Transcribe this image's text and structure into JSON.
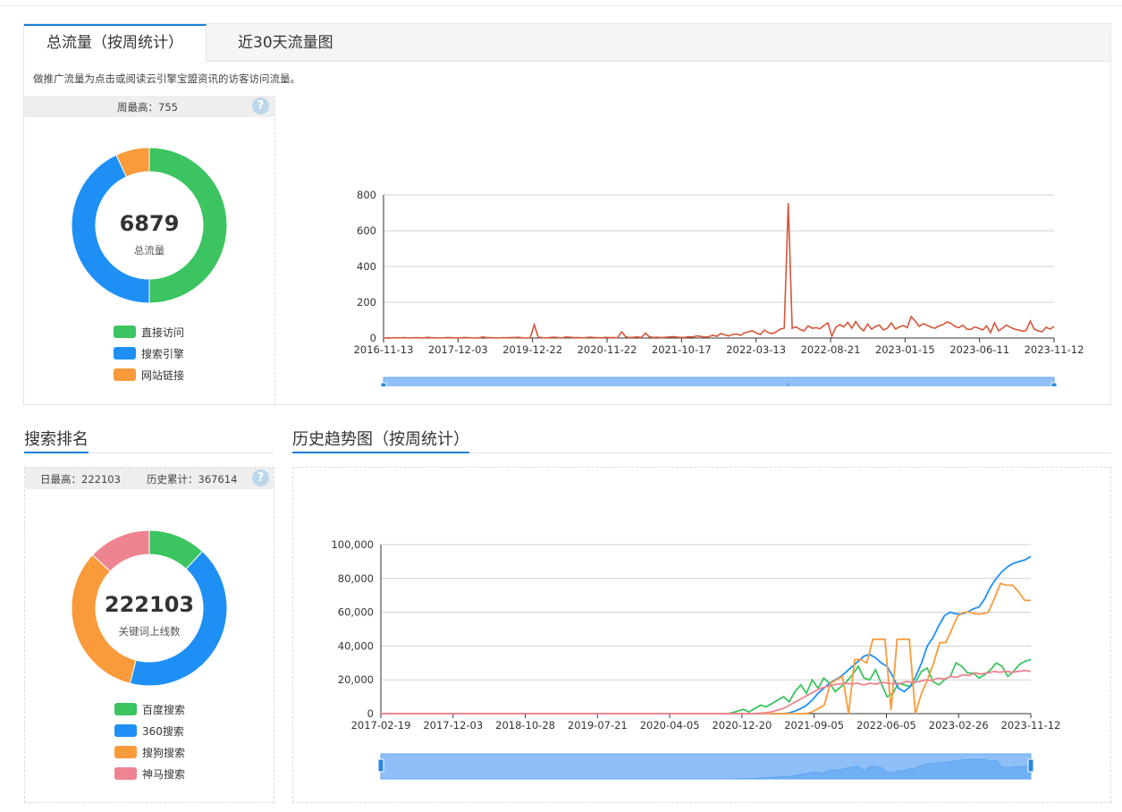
{
  "tabs": [
    {
      "label": "总流量（按周统计）",
      "active": true
    },
    {
      "label": "近30天流量图",
      "active": false
    }
  ],
  "note": "做推广流量为点击或阅读云引擎宝盟资讯的访客访问流量。",
  "traffic": {
    "stat_label": "周最高：755",
    "help": "?",
    "donut": {
      "total": "6879",
      "label": "总流量",
      "slices": [
        {
          "name": "直接访问",
          "fraction": 0.5,
          "color": "#3bc460"
        },
        {
          "name": "搜索引擎",
          "fraction": 0.43,
          "color": "#1e90f5"
        },
        {
          "name": "网站链接",
          "fraction": 0.07,
          "color": "#f99a3b"
        }
      ]
    },
    "legend": [
      {
        "label": "直接访问",
        "color": "#3bc460"
      },
      {
        "label": "搜索引擎",
        "color": "#1e90f5"
      },
      {
        "label": "网站链接",
        "color": "#f99a3b"
      }
    ]
  },
  "ranking": {
    "heading": "搜索排名",
    "stat_day": "日最高：222103",
    "stat_total": "历史累计：367614",
    "help": "?",
    "donut": {
      "total": "222103",
      "label": "关键词上线数",
      "slices": [
        {
          "name": "百度搜索",
          "fraction": 0.12,
          "color": "#3bc460"
        },
        {
          "name": "360搜索",
          "fraction": 0.42,
          "color": "#1e90f5"
        },
        {
          "name": "搜狗搜索",
          "fraction": 0.33,
          "color": "#f99a3b"
        },
        {
          "name": "神马搜索",
          "fraction": 0.13,
          "color": "#ee8491"
        }
      ]
    },
    "legend": [
      {
        "label": "百度搜索",
        "color": "#3bc460"
      },
      {
        "label": "360搜索",
        "color": "#1e90f5"
      },
      {
        "label": "搜狗搜索",
        "color": "#f99a3b"
      },
      {
        "label": "神马搜索",
        "color": "#ee8491"
      }
    ]
  },
  "history": {
    "heading": "历史趋势图（按周统计）"
  },
  "chart_data": [
    {
      "type": "line",
      "title": "",
      "xlabel": "",
      "ylabel": "",
      "ylim": [
        0,
        800
      ],
      "yticks": [
        "0",
        "200",
        "400",
        "600",
        "800"
      ],
      "xticks": [
        "2016-11-13",
        "2017-12-03",
        "2019-12-22",
        "2020-11-22",
        "2021-10-17",
        "2022-03-13",
        "2022-08-21",
        "2023-01-15",
        "2023-06-11",
        "2023-11-12"
      ],
      "grid": true,
      "series": [
        {
          "color": "#d4563b",
          "values": [
            0,
            1,
            0,
            2,
            0,
            3,
            1,
            0,
            2,
            1,
            0,
            4,
            2,
            1,
            0,
            1,
            3,
            2,
            1,
            0,
            2,
            3,
            1,
            0,
            1,
            6,
            3,
            2,
            1,
            0,
            2,
            1,
            3,
            2,
            4,
            1,
            0,
            2,
            75,
            4,
            2,
            1,
            3,
            5,
            2,
            1,
            6,
            4,
            2,
            3,
            1,
            2,
            5,
            3,
            2,
            1,
            4,
            2,
            3,
            1,
            35,
            8,
            2,
            4,
            6,
            3,
            28,
            7,
            3,
            5,
            2,
            4,
            6,
            8,
            5,
            3,
            4,
            7,
            6,
            12,
            9,
            5,
            8,
            15,
            10,
            25,
            18,
            12,
            20,
            22,
            15,
            30,
            35,
            40,
            28,
            20,
            45,
            30,
            25,
            35,
            50,
            55,
            755,
            55,
            62,
            48,
            40,
            68,
            55,
            58,
            52,
            70,
            85,
            10,
            60,
            75,
            62,
            88,
            55,
            92,
            60,
            40,
            78,
            50,
            65,
            72,
            45,
            55,
            85,
            50,
            62,
            70,
            58,
            120,
            95,
            65,
            80,
            72,
            60,
            55,
            68,
            75,
            90,
            82,
            65,
            58,
            72,
            50,
            48,
            62,
            55,
            45,
            68,
            30,
            85,
            40,
            55,
            72,
            60,
            50,
            45,
            38,
            42,
            95,
            50,
            40,
            35,
            60,
            50,
            65
          ]
        }
      ]
    },
    {
      "type": "line",
      "title": "",
      "xlabel": "",
      "ylabel": "",
      "ylim": [
        0,
        100000
      ],
      "yticks": [
        "0",
        "20,000",
        "40,000",
        "60,000",
        "80,000",
        "100,000"
      ],
      "xticks": [
        "2017-02-19",
        "2017-12-03",
        "2018-10-28",
        "2019-07-21",
        "2020-04-05",
        "2020-12-20",
        "2021-09-05",
        "2022-06-05",
        "2023-02-26",
        "2023-11-12"
      ],
      "grid": true,
      "series": [
        {
          "name": "百度搜索",
          "color": "#3bc460",
          "values": [
            0,
            0,
            0,
            0,
            0,
            0,
            0,
            0,
            0,
            0,
            0,
            0,
            0,
            0,
            0,
            0,
            0,
            0,
            0,
            0,
            0,
            0,
            0,
            0,
            0,
            0,
            0,
            0,
            0,
            0,
            0,
            0,
            0,
            0,
            0,
            0,
            0,
            0,
            0,
            0,
            0,
            0,
            0,
            0,
            0,
            0,
            0,
            0,
            0,
            0,
            0,
            0,
            0,
            0,
            0,
            0,
            0,
            0,
            0,
            0,
            0,
            500,
            1500,
            2500,
            1000,
            3000,
            5000,
            4000,
            6000,
            8000,
            10000,
            7000,
            13000,
            17000,
            12000,
            20000,
            15000,
            21000,
            18000,
            13000,
            16000,
            19000,
            23000,
            28000,
            21000,
            20000,
            26000,
            18000,
            10000,
            12000,
            18000,
            17000,
            16000,
            19000,
            25000,
            27000,
            19000,
            17000,
            20000,
            22000,
            30000,
            28000,
            24000,
            24000,
            21000,
            23000,
            26000,
            30000,
            28000,
            22000,
            25000,
            29000,
            31000,
            32000
          ]
        },
        {
          "name": "360搜索",
          "color": "#1e90f5",
          "values": [
            0,
            0,
            0,
            0,
            0,
            0,
            0,
            0,
            0,
            0,
            0,
            0,
            0,
            0,
            0,
            0,
            0,
            0,
            0,
            0,
            0,
            0,
            0,
            0,
            0,
            0,
            0,
            0,
            0,
            0,
            0,
            0,
            0,
            0,
            0,
            0,
            0,
            0,
            0,
            0,
            0,
            0,
            0,
            0,
            0,
            0,
            0,
            0,
            0,
            0,
            0,
            0,
            0,
            0,
            0,
            0,
            0,
            0,
            0,
            0,
            0,
            0,
            0,
            0,
            0,
            0,
            0,
            0,
            0,
            0,
            0,
            500,
            1500,
            3000,
            5000,
            8000,
            12000,
            15000,
            18000,
            20000,
            22000,
            25000,
            28000,
            31000,
            34000,
            35000,
            33000,
            30000,
            28000,
            22000,
            15000,
            13000,
            16000,
            22000,
            30000,
            40000,
            45000,
            52000,
            58000,
            60000,
            59000,
            59000,
            60000,
            62000,
            63000,
            68000,
            75000,
            80000,
            84000,
            87000,
            89000,
            90000,
            91000,
            93000
          ]
        },
        {
          "name": "搜狗搜索",
          "color": "#f99a3b",
          "values": [
            0,
            0,
            0,
            0,
            0,
            0,
            0,
            0,
            0,
            0,
            0,
            0,
            0,
            0,
            0,
            0,
            0,
            0,
            0,
            0,
            0,
            0,
            0,
            0,
            0,
            0,
            0,
            0,
            0,
            0,
            0,
            0,
            0,
            0,
            0,
            0,
            0,
            0,
            0,
            0,
            0,
            0,
            0,
            0,
            0,
            0,
            0,
            0,
            0,
            0,
            0,
            0,
            0,
            0,
            0,
            0,
            0,
            0,
            0,
            0,
            0,
            0,
            0,
            0,
            0,
            0,
            0,
            0,
            0,
            0,
            0,
            1000,
            3000,
            5000,
            18000,
            20000,
            22000,
            0,
            32000,
            32000,
            30000,
            44000,
            44000,
            44000,
            2000,
            44000,
            44000,
            44000,
            0,
            12000,
            20000,
            30000,
            42000,
            42000,
            50000,
            58000,
            60000,
            60000,
            59000,
            59000,
            60000,
            68000,
            77000,
            76000,
            76000,
            72000,
            67000,
            67000
          ]
        },
        {
          "name": "神马搜索",
          "color": "#ee8491",
          "values": [
            0,
            0,
            0,
            0,
            0,
            0,
            0,
            0,
            0,
            0,
            0,
            0,
            0,
            0,
            0,
            0,
            0,
            0,
            0,
            0,
            0,
            0,
            0,
            0,
            0,
            0,
            0,
            0,
            0,
            0,
            0,
            0,
            0,
            0,
            0,
            0,
            0,
            0,
            0,
            0,
            0,
            0,
            0,
            0,
            0,
            0,
            0,
            0,
            0,
            0,
            0,
            0,
            0,
            0,
            0,
            0,
            0,
            0,
            0,
            0,
            0,
            200,
            500,
            1000,
            2000,
            3000,
            5000,
            7000,
            9000,
            11000,
            13000,
            15000,
            16000,
            17000,
            17500,
            18000,
            17500,
            18000,
            17000,
            18000,
            17500,
            18500,
            18000,
            17500,
            18000,
            19000,
            18500,
            19000,
            20000,
            19500,
            21000,
            20500,
            22000,
            21500,
            23000,
            22500,
            24000,
            23500,
            24000,
            25000,
            24500,
            25000,
            24500,
            25000,
            25500,
            25000
          ]
        }
      ]
    }
  ]
}
